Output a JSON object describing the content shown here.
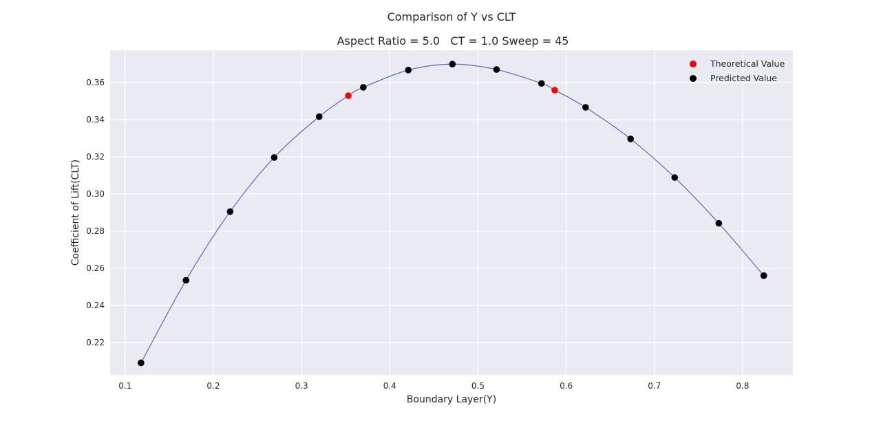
{
  "chart_data": {
    "type": "scatter",
    "title": "Comparison of Y vs CLT",
    "subtitle": "Aspect Ratio = 5.0   CT = 1.0 Sweep = 45",
    "xlabel": "Boundary Layer(Y)",
    "ylabel": "Coefficient of Lift(CLT)",
    "xlim": [
      0.083,
      0.857
    ],
    "ylim": [
      0.2025,
      0.3775
    ],
    "xticks": [
      "0.1",
      "0.2",
      "0.3",
      "0.4",
      "0.5",
      "0.6",
      "0.7",
      "0.8"
    ],
    "yticks": [
      "0.22",
      "0.24",
      "0.26",
      "0.28",
      "0.30",
      "0.32",
      "0.34",
      "0.36"
    ],
    "grid": true,
    "legend_position": "top-right",
    "colors": {
      "background": "#eaeaf2",
      "grid": "#ffffff",
      "curve": "#4c72b0",
      "theoretical": "#ff0000",
      "predicted": "#000000"
    },
    "series": [
      {
        "name": "Theoretical Value",
        "x": [
          0.118,
          0.353,
          0.587,
          0.824
        ],
        "y": [
          0.209,
          0.353,
          0.356,
          0.256
        ]
      },
      {
        "name": "Predicted Value",
        "x": [
          0.118,
          0.169,
          0.219,
          0.269,
          0.32,
          0.37,
          0.421,
          0.471,
          0.521,
          0.572,
          0.622,
          0.673,
          0.723,
          0.773,
          0.824
        ],
        "y": [
          0.209,
          0.2535,
          0.2905,
          0.3197,
          0.3417,
          0.3575,
          0.3668,
          0.37,
          0.3671,
          0.3596,
          0.3467,
          0.3297,
          0.3089,
          0.2842,
          0.256
        ]
      }
    ],
    "curve": {
      "x": [
        0.118,
        0.169,
        0.219,
        0.269,
        0.32,
        0.353,
        0.37,
        0.421,
        0.471,
        0.521,
        0.572,
        0.587,
        0.622,
        0.673,
        0.723,
        0.773,
        0.824
      ],
      "y": [
        0.209,
        0.2535,
        0.2905,
        0.3197,
        0.3417,
        0.353,
        0.3575,
        0.3668,
        0.37,
        0.3671,
        0.3596,
        0.356,
        0.3467,
        0.3297,
        0.3089,
        0.2842,
        0.256
      ]
    }
  }
}
